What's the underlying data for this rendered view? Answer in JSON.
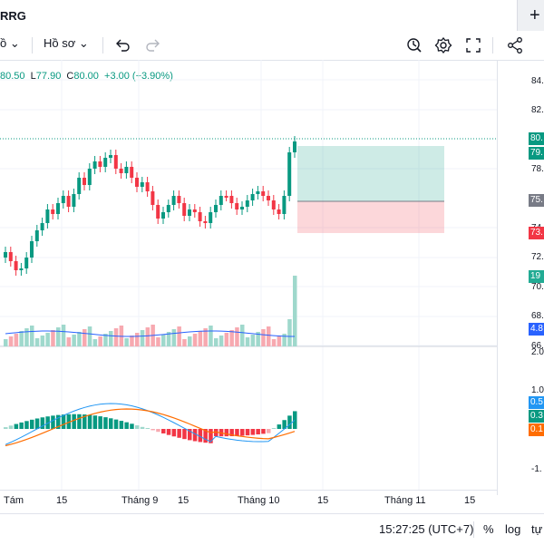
{
  "tab": {
    "title": "RRG",
    "new_tab": "+"
  },
  "toolbar": {
    "interval_partial": "ồ",
    "profile_label": "Hồ sơ"
  },
  "ohlc": {
    "h": "80.50",
    "l": "77.90",
    "c": "80.00",
    "change": "+3.00 (+3.90%)"
  },
  "price_axis": {
    "ticks": [
      "84.",
      "82.",
      "78.",
      "74.",
      "72.",
      "70.",
      "68.",
      "66."
    ]
  },
  "price_tags": [
    {
      "text": "80.",
      "color": "#089981"
    },
    {
      "text": "79.",
      "color": "#089981"
    },
    {
      "text": "75.",
      "color": "#787b86"
    },
    {
      "text": "73.",
      "color": "#f23645"
    },
    {
      "text": "19",
      "color": "#22ab94"
    },
    {
      "text": "4.8",
      "color": "#2962ff"
    }
  ],
  "macd_axis": {
    "ticks": [
      "2.0",
      "1.0",
      "-1."
    ]
  },
  "macd_tags": [
    {
      "text": "0.5",
      "color": "#2196f3"
    },
    {
      "text": "0.3",
      "color": "#089981"
    },
    {
      "text": "0.1",
      "color": "#ff6d00"
    }
  ],
  "time_axis": [
    "Tám",
    "15",
    "Tháng 9",
    "15",
    "Tháng 10",
    "15",
    "Tháng 11",
    "15"
  ],
  "status": {
    "time": "15:27:25 (UTC+7)",
    "percent": "%",
    "log": "log",
    "auto": "tự"
  },
  "colors": {
    "up": "#089981",
    "down": "#f23645",
    "vol_up": "#9fd8cc",
    "vol_down": "#f7a9b0",
    "ma": "#2962ff",
    "macd": "#2196f3",
    "signal": "#ff6d00"
  }
}
